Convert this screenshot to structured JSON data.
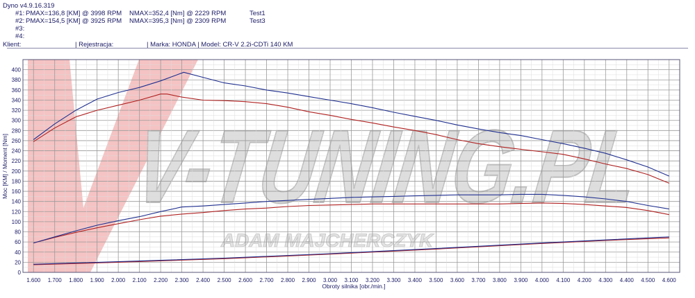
{
  "header": {
    "title": "Dyno v4.9.16.319",
    "runs": [
      {
        "label": "#1:",
        "pmax": "PMAX=136,8 [KM] @ 3998 RPM",
        "nmax": "NMAX=352,4 [Nm] @ 2229 RPM",
        "name": "Test1"
      },
      {
        "label": "#2:",
        "pmax": "PMAX=154,5 [KM] @ 3925 RPM",
        "nmax": "NMAX=395,3 [Nm] @ 2309 RPM",
        "name": "Test3"
      },
      {
        "label": "#3:",
        "pmax": "",
        "nmax": "",
        "name": ""
      },
      {
        "label": "#4:",
        "pmax": "",
        "nmax": "",
        "name": ""
      }
    ],
    "client_label": "Klient:",
    "registration": "| Rejestracja:",
    "vehicle": "| Marka: HONDA | Model: CR-V 2.2i-CDTi 140 KM"
  },
  "watermark": {
    "brand": "V-TUNING.PL",
    "sub": "ADAM MAJCHERCZYK"
  },
  "chart_data": {
    "type": "line",
    "xlabel": "Obroty silnika [obr./min.]",
    "ylabel": "Moc [KM] / Moment [Nm]",
    "xlim": [
      1550,
      4650
    ],
    "ylim": [
      0,
      420
    ],
    "x_ticks": [
      "1.600",
      "1.700",
      "1.800",
      "1.900",
      "2.000",
      "2.100",
      "2.200",
      "2.300",
      "2.400",
      "2.500",
      "2.600",
      "2.700",
      "2.800",
      "2.900",
      "3.000",
      "3.100",
      "3.200",
      "3.300",
      "3.400",
      "3.500",
      "3.600",
      "3.700",
      "3.800",
      "3.900",
      "4.000",
      "4.100",
      "4.200",
      "4.300",
      "4.400",
      "4.500",
      "4.600"
    ],
    "y_ticks": [
      0,
      20,
      40,
      60,
      80,
      100,
      120,
      140,
      160,
      180,
      200,
      220,
      240,
      260,
      280,
      300,
      320,
      340,
      360,
      380,
      400
    ],
    "colors": {
      "run1": "#b02020",
      "run2": "#1f2f8f",
      "grid": "#9a9a9a"
    },
    "series": [
      {
        "name": "Test1",
        "kind": "torque",
        "color": "#b02020",
        "x": [
          1600,
          1700,
          1800,
          1900,
          2000,
          2100,
          2200,
          2230,
          2300,
          2400,
          2500,
          2600,
          2700,
          2800,
          2900,
          3000,
          3100,
          3200,
          3300,
          3400,
          3500,
          3600,
          3700,
          3800,
          3900,
          4000,
          4100,
          4200,
          4300,
          4400,
          4500,
          4600
        ],
        "y": [
          258,
          285,
          307,
          320,
          330,
          340,
          352,
          352,
          346,
          340,
          339,
          337,
          333,
          326,
          317,
          310,
          302,
          295,
          287,
          280,
          272,
          262,
          254,
          248,
          243,
          238,
          233,
          224,
          214,
          205,
          193,
          176
        ]
      },
      {
        "name": "Test3",
        "kind": "torque",
        "color": "#1f2f8f",
        "x": [
          1600,
          1700,
          1800,
          1900,
          2000,
          2100,
          2200,
          2309,
          2400,
          2500,
          2600,
          2700,
          2800,
          2900,
          3000,
          3100,
          3200,
          3300,
          3400,
          3500,
          3600,
          3700,
          3800,
          3900,
          4000,
          4100,
          4200,
          4300,
          4400,
          4500,
          4600
        ],
        "y": [
          262,
          293,
          320,
          342,
          355,
          365,
          378,
          395,
          385,
          374,
          368,
          360,
          354,
          347,
          340,
          333,
          325,
          316,
          308,
          300,
          291,
          283,
          276,
          270,
          262,
          254,
          245,
          235,
          222,
          208,
          190
        ]
      },
      {
        "name": "Test1",
        "kind": "power",
        "color": "#b02020",
        "x": [
          1600,
          1700,
          1800,
          1900,
          2000,
          2100,
          2200,
          2300,
          2400,
          2500,
          2600,
          2700,
          2800,
          2900,
          3000,
          3100,
          3200,
          3300,
          3400,
          3500,
          3600,
          3700,
          3800,
          3900,
          4000,
          4100,
          4200,
          4300,
          4400,
          4500,
          4600
        ],
        "y": [
          58,
          69,
          79,
          88,
          96,
          104,
          111,
          115,
          118,
          122,
          125,
          127,
          130,
          132,
          133,
          134,
          135,
          135,
          135,
          135,
          135,
          135,
          135,
          136,
          137,
          136,
          134,
          131,
          128,
          122,
          114
        ]
      },
      {
        "name": "Test3",
        "kind": "power",
        "color": "#1f2f8f",
        "x": [
          1600,
          1700,
          1800,
          1900,
          2000,
          2100,
          2200,
          2300,
          2400,
          2500,
          2600,
          2700,
          2800,
          2900,
          3000,
          3100,
          3200,
          3300,
          3400,
          3500,
          3600,
          3700,
          3800,
          3900,
          4000,
          4100,
          4200,
          4300,
          4400,
          4500,
          4600
        ],
        "y": [
          58,
          70,
          82,
          93,
          102,
          110,
          120,
          129,
          131,
          134,
          137,
          140,
          142,
          144,
          146,
          148,
          149,
          150,
          151,
          152,
          153,
          153,
          153,
          154,
          154,
          152,
          149,
          145,
          140,
          132,
          125
        ]
      },
      {
        "name": "Test1",
        "kind": "loss",
        "color": "#b02020",
        "x": [
          1600,
          2000,
          2500,
          3000,
          3500,
          4000,
          4300,
          4600
        ],
        "y": [
          15,
          20,
          27,
          36,
          46,
          57,
          63,
          68
        ]
      },
      {
        "name": "Test3",
        "kind": "loss",
        "color": "#1f2f8f",
        "x": [
          1600,
          2000,
          2500,
          3000,
          3500,
          4000,
          4300,
          4600
        ],
        "y": [
          16,
          21,
          28,
          37,
          47,
          58,
          64,
          70
        ]
      }
    ]
  }
}
